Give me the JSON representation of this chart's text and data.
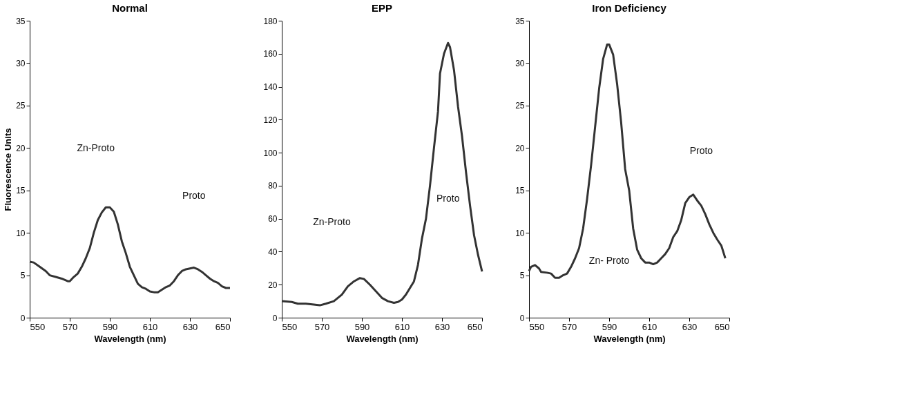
{
  "chart_data": [
    {
      "type": "line",
      "title": "Normal",
      "xlabel": "Wavelength (nm)",
      "ylabel": "Fluorescence Units",
      "xlim": [
        550,
        650
      ],
      "xticks": [
        550,
        570,
        590,
        610,
        630,
        650
      ],
      "ylim": [
        0,
        35
      ],
      "yticks": [
        0,
        5,
        10,
        15,
        20,
        25,
        30,
        35
      ],
      "grid": false,
      "line_style": "solid",
      "annotations": [
        "Zn-Proto",
        "Proto"
      ],
      "series": [
        {
          "color": "#333333",
          "x": [
            550,
            552,
            555,
            558,
            560,
            563,
            566,
            569,
            570,
            572,
            574,
            576,
            578,
            580,
            582,
            584,
            586,
            588,
            590,
            592,
            594,
            596,
            598,
            600,
            602,
            604,
            606,
            608,
            610,
            612,
            614,
            616,
            618,
            620,
            622,
            624,
            626,
            628,
            630,
            632,
            634,
            636,
            638,
            640,
            642,
            644,
            646,
            648,
            650
          ],
          "values": [
            6.6,
            6.5,
            6.0,
            5.5,
            5.0,
            4.8,
            4.6,
            4.3,
            4.3,
            4.8,
            5.2,
            6.0,
            7.0,
            8.2,
            10.0,
            11.5,
            12.4,
            13.0,
            13.0,
            12.5,
            11.0,
            9.0,
            7.6,
            6.0,
            5.0,
            4.0,
            3.6,
            3.4,
            3.1,
            3.0,
            3.0,
            3.3,
            3.6,
            3.8,
            4.3,
            5.0,
            5.5,
            5.7,
            5.8,
            5.9,
            5.7,
            5.4,
            5.0,
            4.6,
            4.3,
            4.1,
            3.7,
            3.5,
            3.5
          ]
        }
      ]
    },
    {
      "type": "line",
      "title": "EPP",
      "xlabel": "Wavelength (nm)",
      "xlim": [
        550,
        650
      ],
      "xticks": [
        550,
        570,
        590,
        610,
        630,
        650
      ],
      "ylim": [
        0,
        180
      ],
      "yticks": [
        0,
        20,
        40,
        60,
        80,
        100,
        120,
        140,
        160,
        180
      ],
      "grid": false,
      "line_style": "solid",
      "annotations": [
        "Zn-Proto",
        "Proto"
      ],
      "series": [
        {
          "color": "#333333",
          "x": [
            550,
            555,
            558,
            562,
            566,
            569,
            572,
            576,
            580,
            583,
            586,
            589,
            591,
            594,
            597,
            600,
            603,
            606,
            608,
            610,
            612,
            614,
            616,
            618,
            620,
            622,
            624,
            626,
            628,
            629,
            631,
            633,
            634,
            636,
            638,
            640,
            642,
            644,
            646,
            648,
            650
          ],
          "values": [
            10,
            9.5,
            8.5,
            8.5,
            8,
            7.5,
            8.5,
            10,
            14,
            19,
            22,
            24,
            23.5,
            20,
            16,
            12,
            10,
            9,
            9.5,
            11,
            14,
            18,
            22,
            32,
            48,
            60,
            80,
            103,
            125,
            148,
            160,
            166.5,
            164,
            150,
            128,
            110,
            88,
            68,
            50,
            38,
            28
          ]
        }
      ]
    },
    {
      "type": "line",
      "title": "Iron Deficiency",
      "xlabel": "Wavelength (nm)",
      "xlim": [
        550,
        650
      ],
      "xticks": [
        550,
        570,
        590,
        610,
        630,
        650
      ],
      "ylim": [
        0,
        35
      ],
      "yticks": [
        0,
        5,
        10,
        15,
        20,
        25,
        30,
        35
      ],
      "grid": false,
      "line_style": "solid",
      "annotations": [
        "Proto",
        "Zn- Proto"
      ],
      "series": [
        {
          "color": "#333333",
          "x": [
            550,
            551,
            553,
            555,
            556,
            559,
            561,
            563,
            565,
            567,
            569,
            571,
            573,
            575,
            577,
            579,
            581,
            583,
            585,
            587,
            589,
            590,
            592,
            594,
            596,
            598,
            600,
            602,
            604,
            606,
            608,
            610,
            612,
            614,
            616,
            618,
            620,
            622,
            624,
            626,
            628,
            630,
            632,
            634,
            636,
            638,
            640,
            642,
            644,
            646,
            648
          ],
          "values": [
            5.5,
            6,
            6.2,
            5.8,
            5.4,
            5.3,
            5.2,
            4.7,
            4.7,
            5.0,
            5.2,
            6.0,
            7.0,
            8.2,
            10.5,
            14,
            18,
            22.5,
            27,
            30.5,
            32.2,
            32.2,
            31,
            27.5,
            23,
            17.5,
            15,
            10.5,
            8,
            7,
            6.5,
            6.5,
            6.3,
            6.5,
            7,
            7.5,
            8.2,
            9.5,
            10.2,
            11.5,
            13.5,
            14.2,
            14.5,
            13.8,
            13.2,
            12.2,
            11,
            10,
            9.2,
            8.5,
            7.0
          ]
        }
      ]
    }
  ]
}
